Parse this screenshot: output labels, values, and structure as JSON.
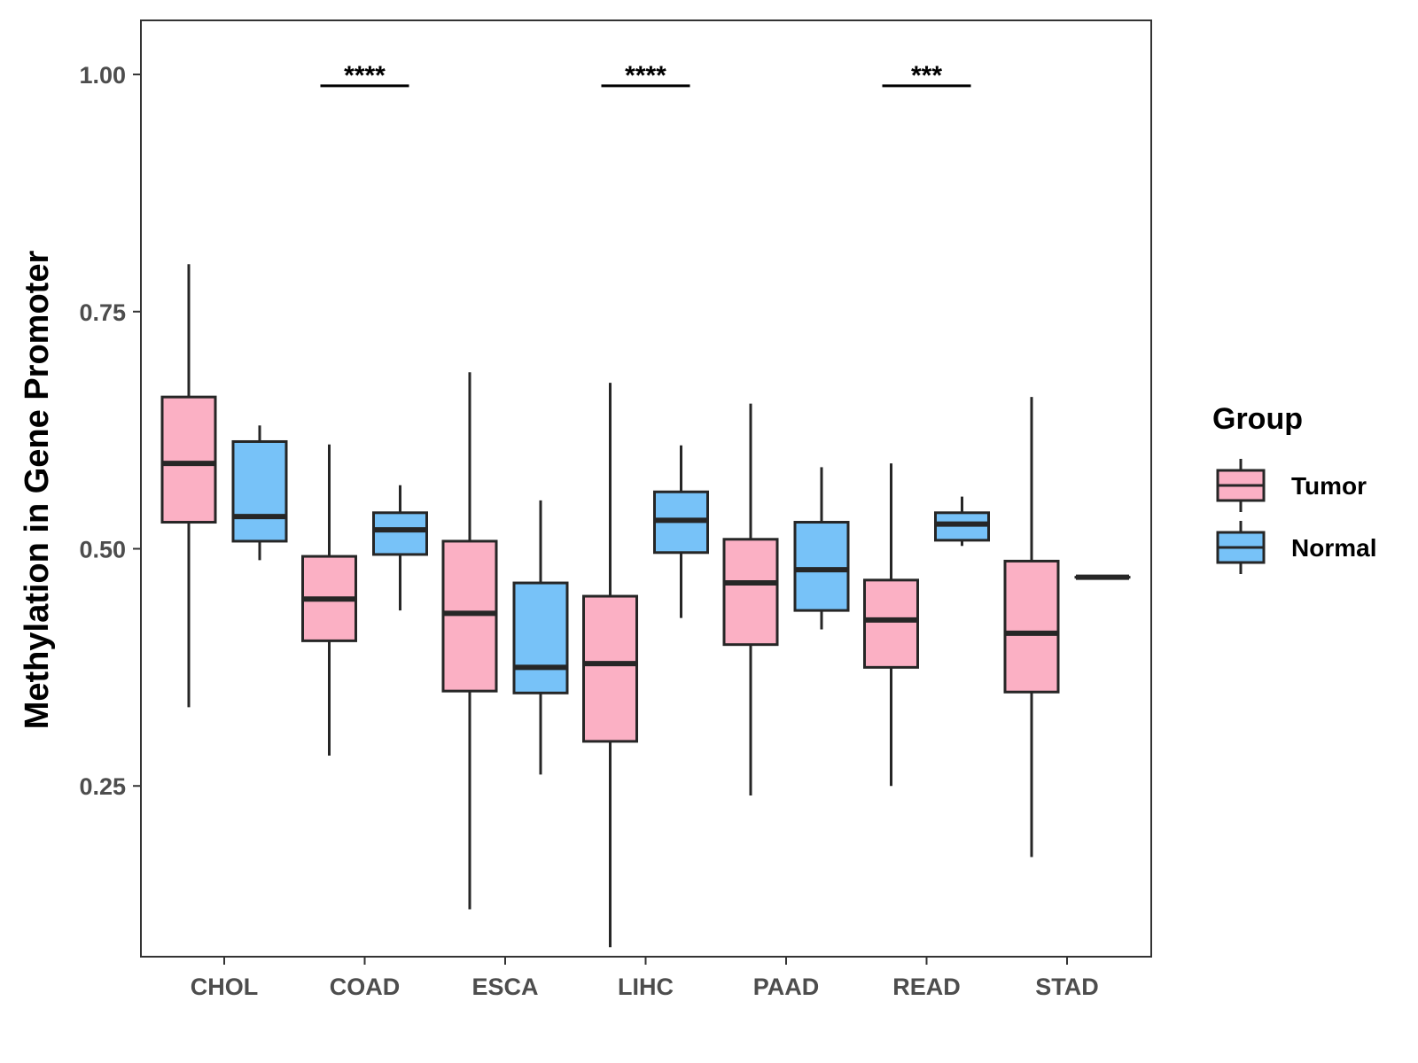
{
  "chart_data": {
    "type": "boxplot",
    "title": "",
    "xlabel": "",
    "ylabel": "Methylation in Gene Promoter",
    "ylim": [
      0.07,
      1.057
    ],
    "yticks": [
      0.25,
      0.5,
      0.75,
      1.0
    ],
    "ytick_labels": [
      "0.25",
      "0.50",
      "0.75",
      "1.00"
    ],
    "categories": [
      "CHOL",
      "COAD",
      "ESCA",
      "LIHC",
      "PAAD",
      "READ",
      "STAD"
    ],
    "grid": false,
    "legend": {
      "title": "Group",
      "position": "right",
      "entries": [
        "Tumor",
        "Normal"
      ]
    },
    "colors": {
      "Tumor": "#fbb0c4",
      "Normal": "#77c2f8",
      "outline": "#262626"
    },
    "series": [
      {
        "name": "Tumor",
        "boxes": [
          {
            "category": "CHOL",
            "whisker_low": 0.333,
            "q1": 0.528,
            "median": 0.59,
            "q3": 0.66,
            "whisker_high": 0.8
          },
          {
            "category": "COAD",
            "whisker_low": 0.282,
            "q1": 0.403,
            "median": 0.447,
            "q3": 0.492,
            "whisker_high": 0.61
          },
          {
            "category": "ESCA",
            "whisker_low": 0.12,
            "q1": 0.35,
            "median": 0.432,
            "q3": 0.508,
            "whisker_high": 0.686
          },
          {
            "category": "LIHC",
            "whisker_low": 0.08,
            "q1": 0.297,
            "median": 0.379,
            "q3": 0.45,
            "whisker_high": 0.675
          },
          {
            "category": "PAAD",
            "whisker_low": 0.24,
            "q1": 0.399,
            "median": 0.464,
            "q3": 0.51,
            "whisker_high": 0.653
          },
          {
            "category": "READ",
            "whisker_low": 0.25,
            "q1": 0.375,
            "median": 0.425,
            "q3": 0.467,
            "whisker_high": 0.59
          },
          {
            "category": "STAD",
            "whisker_low": 0.175,
            "q1": 0.349,
            "median": 0.411,
            "q3": 0.487,
            "whisker_high": 0.66
          }
        ]
      },
      {
        "name": "Normal",
        "boxes": [
          {
            "category": "CHOL",
            "whisker_low": 0.488,
            "q1": 0.508,
            "median": 0.534,
            "q3": 0.613,
            "whisker_high": 0.63
          },
          {
            "category": "COAD",
            "whisker_low": 0.435,
            "q1": 0.494,
            "median": 0.52,
            "q3": 0.538,
            "whisker_high": 0.567
          },
          {
            "category": "ESCA",
            "whisker_low": 0.262,
            "q1": 0.348,
            "median": 0.375,
            "q3": 0.464,
            "whisker_high": 0.551
          },
          {
            "category": "LIHC",
            "whisker_low": 0.427,
            "q1": 0.496,
            "median": 0.53,
            "q3": 0.56,
            "whisker_high": 0.609
          },
          {
            "category": "PAAD",
            "whisker_low": 0.415,
            "q1": 0.435,
            "median": 0.478,
            "q3": 0.528,
            "whisker_high": 0.586
          },
          {
            "category": "READ",
            "whisker_low": 0.503,
            "q1": 0.509,
            "median": 0.526,
            "q3": 0.538,
            "whisker_high": 0.555
          },
          {
            "category": "STAD",
            "whisker_low": 0.47,
            "q1": 0.47,
            "median": 0.47,
            "q3": 0.47,
            "whisker_high": 0.47
          }
        ]
      }
    ],
    "annotations": [
      {
        "category": "COAD",
        "text": "****",
        "y": 0.988
      },
      {
        "category": "LIHC",
        "text": "****",
        "y": 0.988
      },
      {
        "category": "READ",
        "text": "***",
        "y": 0.988
      }
    ]
  }
}
